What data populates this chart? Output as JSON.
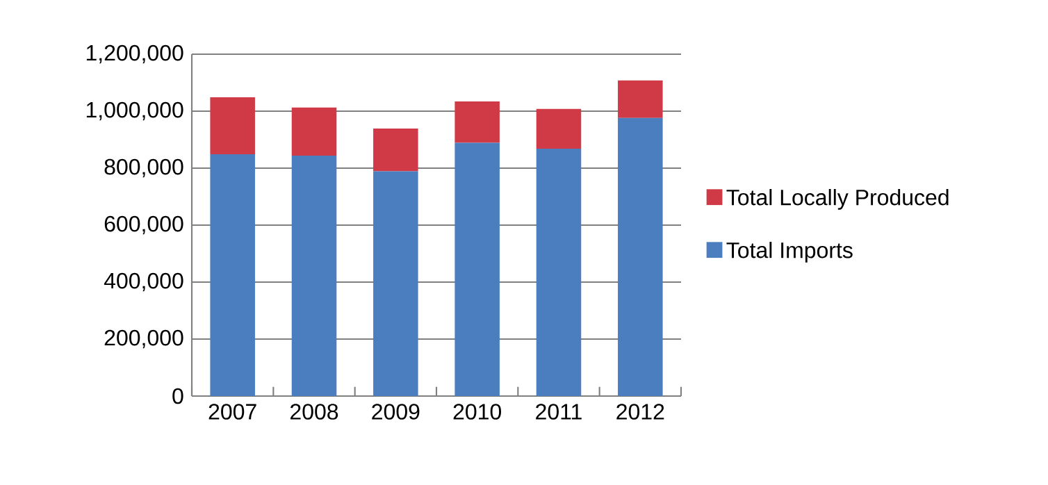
{
  "chart_data": {
    "type": "bar",
    "stacked": true,
    "categories": [
      "2007",
      "2008",
      "2009",
      "2010",
      "2011",
      "2012"
    ],
    "series": [
      {
        "name": "Total Imports",
        "color": "#4a7ebf",
        "values": [
          849000,
          844000,
          789000,
          889000,
          868000,
          976000
        ]
      },
      {
        "name": "Total Locally Produced",
        "color": "#d03a46",
        "values": [
          200000,
          169000,
          150000,
          145000,
          140000,
          132000
        ]
      }
    ],
    "ylim": [
      0,
      1200000
    ],
    "yticks": [
      0,
      {
        "value": 200000,
        "label": "200,000"
      },
      {
        "value": 400000,
        "label": "400,000"
      },
      {
        "value": 600000,
        "label": "600,000"
      },
      {
        "value": 800000,
        "label": "800,000"
      },
      {
        "value": 1000000,
        "label": "1,000,000"
      },
      {
        "value": 1200000,
        "label": "1,200,000"
      }
    ],
    "grid": "y",
    "legend": "right"
  }
}
